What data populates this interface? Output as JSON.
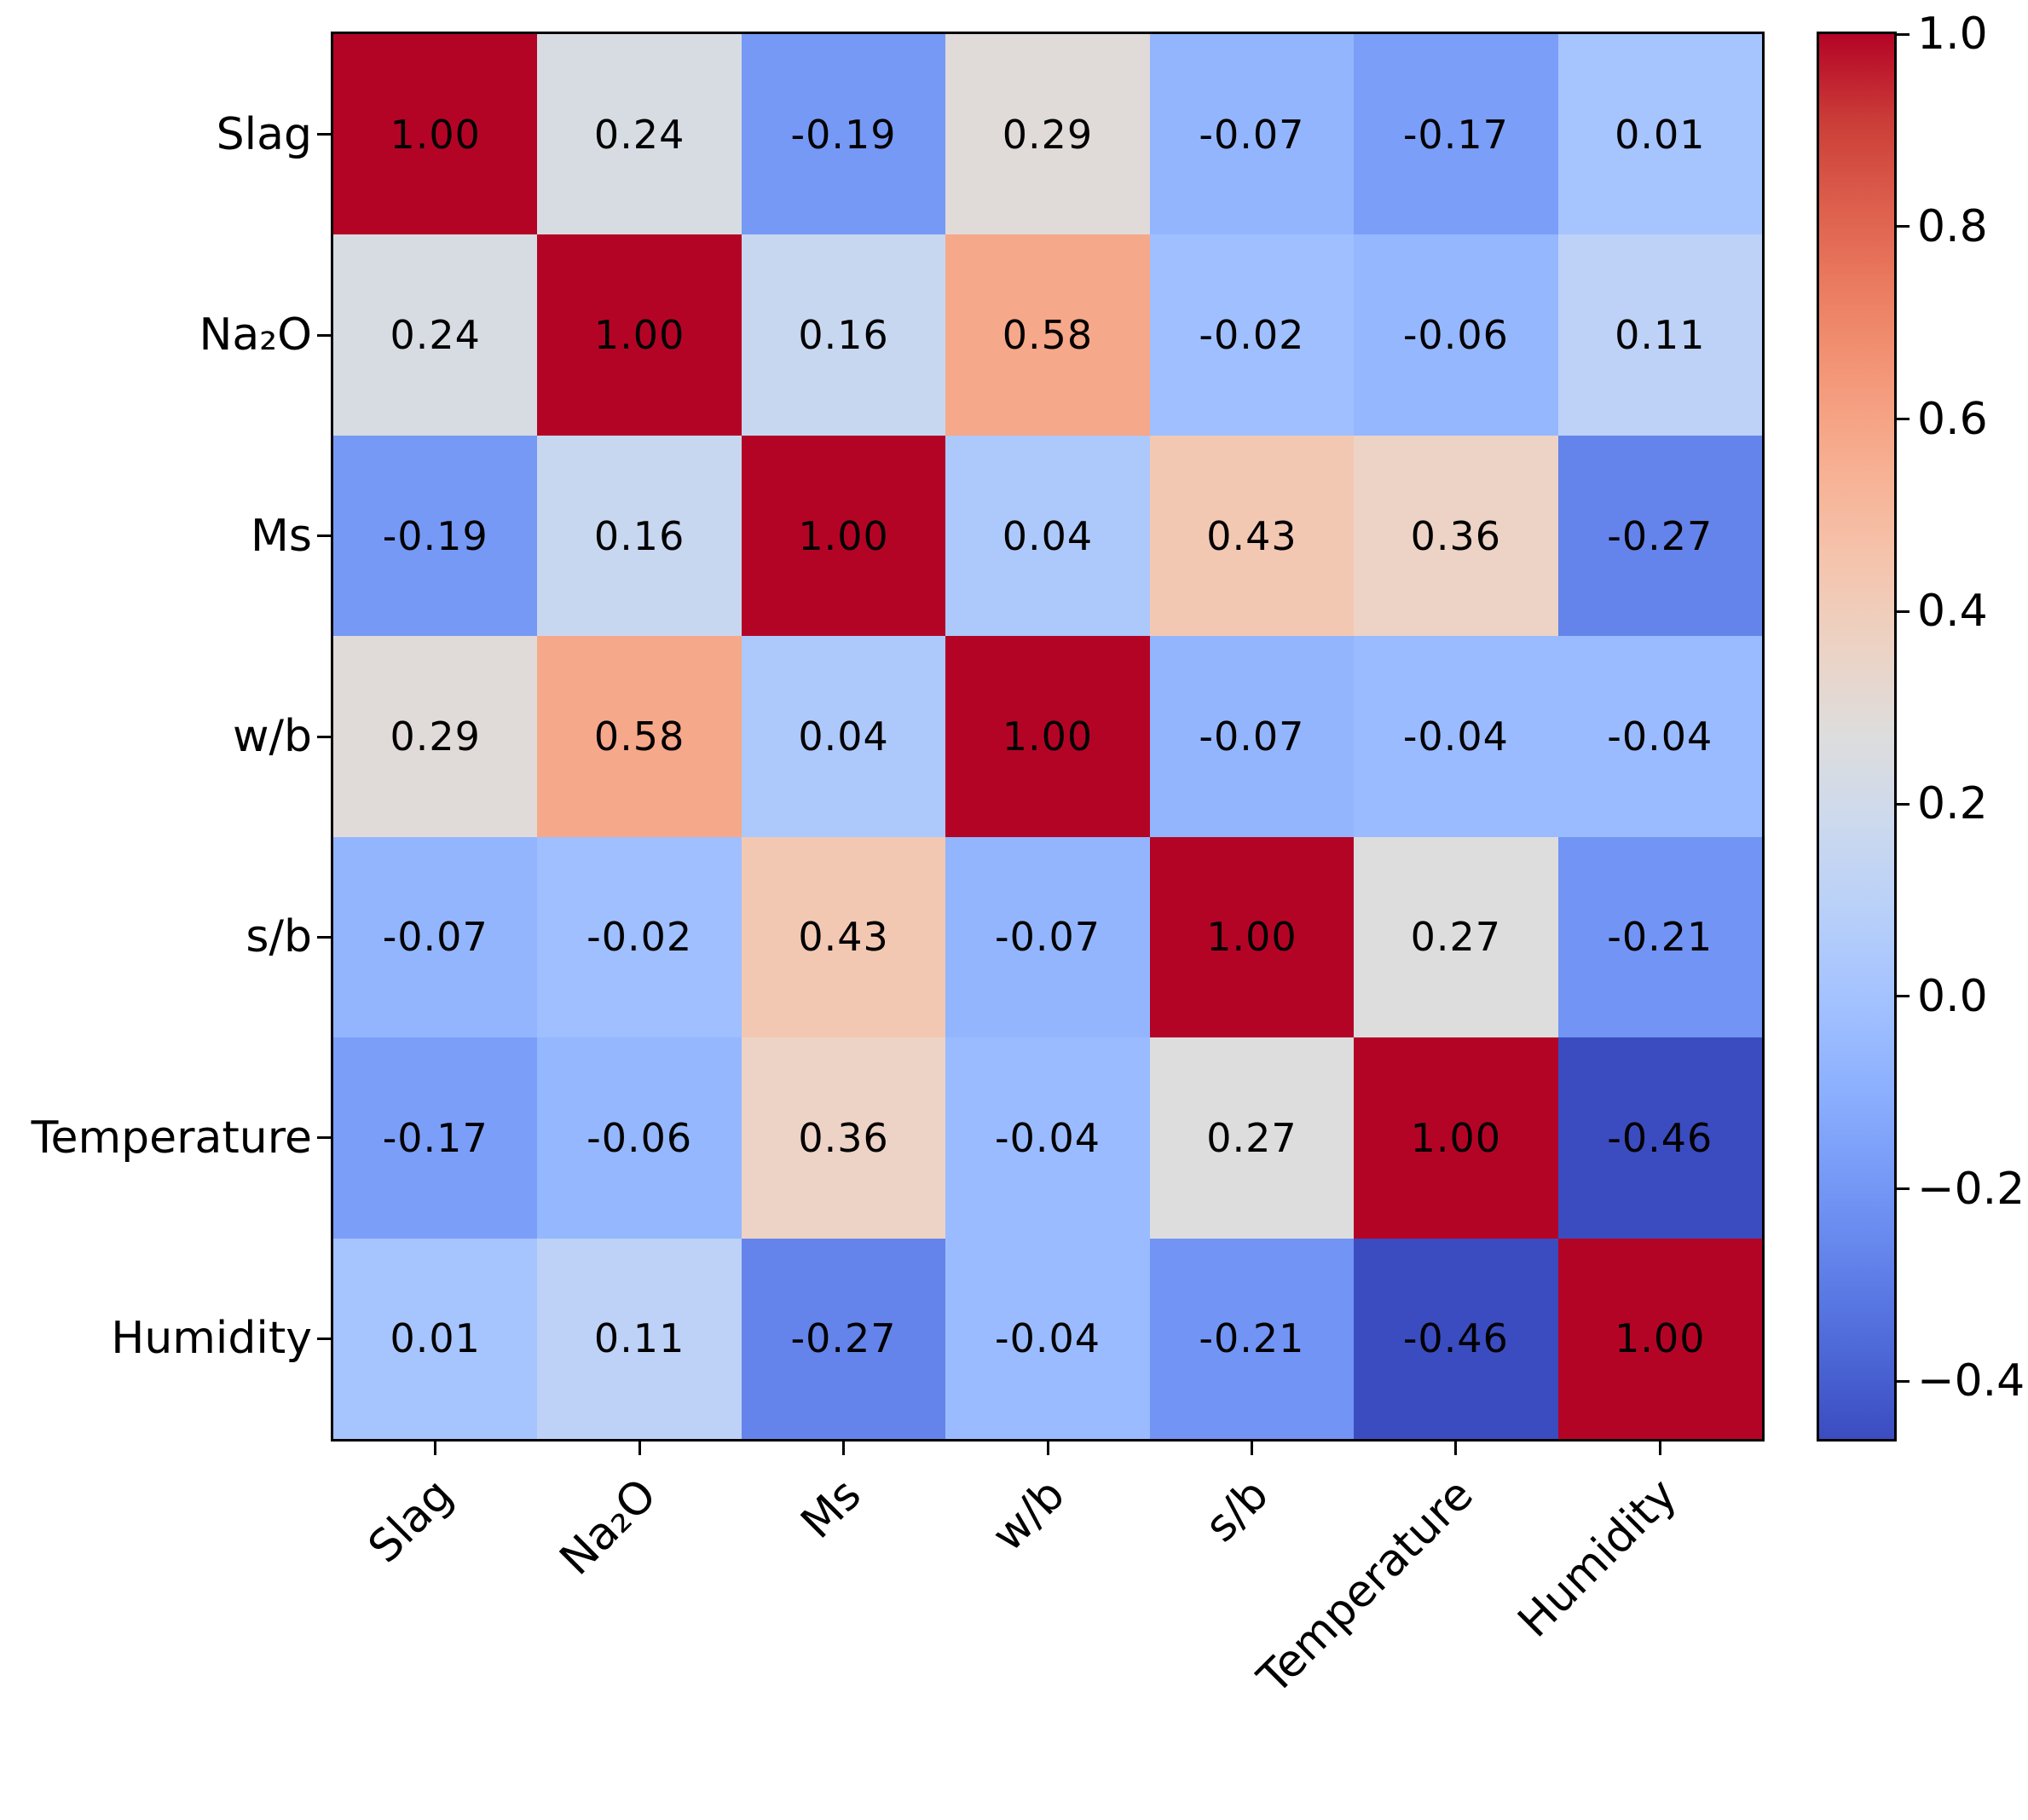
{
  "figure": {
    "background": "#ffffff"
  },
  "chart_data": {
    "type": "heatmap",
    "title": "",
    "categories": [
      "Slag",
      "Na₂O",
      "Ms",
      "w/b",
      "s/b",
      "Temperature",
      "Humidity"
    ],
    "matrix": [
      [
        1.0,
        0.24,
        -0.19,
        0.29,
        -0.07,
        -0.17,
        0.01
      ],
      [
        0.24,
        1.0,
        0.16,
        0.58,
        -0.02,
        -0.06,
        0.11
      ],
      [
        -0.19,
        0.16,
        1.0,
        0.04,
        0.43,
        0.36,
        -0.27
      ],
      [
        0.29,
        0.58,
        0.04,
        1.0,
        -0.07,
        -0.04,
        -0.04
      ],
      [
        -0.07,
        -0.02,
        0.43,
        -0.07,
        1.0,
        0.27,
        -0.21
      ],
      [
        -0.17,
        -0.06,
        0.36,
        -0.04,
        0.27,
        1.0,
        -0.46
      ],
      [
        0.01,
        0.11,
        -0.27,
        -0.04,
        -0.21,
        -0.46,
        1.0
      ]
    ],
    "cell_label_decimals": 2,
    "colormap": "coolwarm",
    "vmin": -0.46,
    "vmax": 1.0,
    "grid": false,
    "legend_position": "none",
    "axis": {
      "x_tick_labels": [
        "Slag",
        "Na₂O",
        "Ms",
        "w/b",
        "s/b",
        "Temperature",
        "Humidity"
      ],
      "y_tick_labels": [
        "Slag",
        "Na₂O",
        "Ms",
        "w/b",
        "s/b",
        "Temperature",
        "Humidity"
      ],
      "x_label_rotation_deg": 45,
      "xlabel": "",
      "ylabel": ""
    },
    "colorbar": {
      "position": "right",
      "ticks": [
        1.0,
        0.8,
        0.6,
        0.4,
        0.2,
        0.0,
        -0.2,
        -0.4
      ],
      "tick_labels": [
        "1.0",
        "0.8",
        "0.6",
        "0.4",
        "0.2",
        "0.0",
        "−0.2",
        "−0.4"
      ]
    },
    "colors": {
      "annotation_text": "#000000",
      "axis_text": "#000000",
      "spine": "#000000",
      "cmap_min": "#3b4cc0",
      "cmap_mid": "#dddddd",
      "cmap_max": "#b40426"
    }
  }
}
